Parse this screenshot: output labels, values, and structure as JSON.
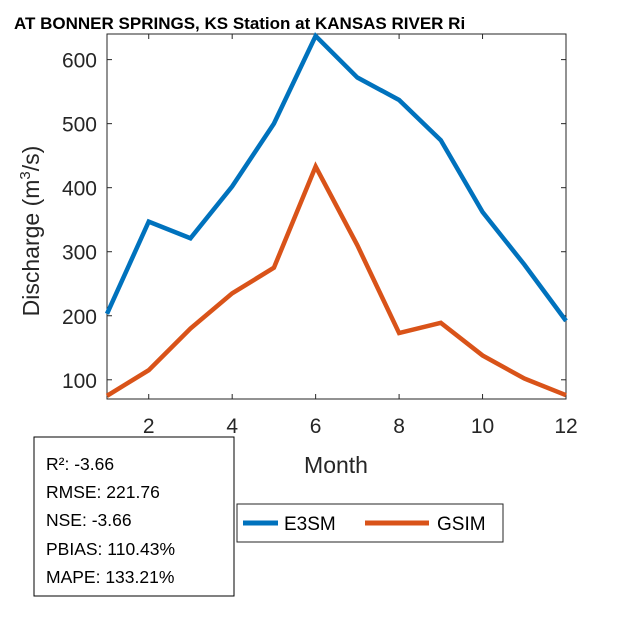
{
  "chart_data": {
    "type": "line",
    "title": "AT BONNER SPRINGS, KS  Station at  KANSAS RIVER  Ri",
    "xlabel": "Month",
    "ylabel_main": "Discharge (m",
    "ylabel_sup": "3",
    "ylabel_end": "/s)",
    "xlim": [
      1,
      12
    ],
    "ylim": [
      70,
      640
    ],
    "xticks": [
      2,
      4,
      6,
      8,
      10,
      12
    ],
    "yticks": [
      100,
      200,
      300,
      400,
      500,
      600
    ],
    "x": [
      1,
      2,
      3,
      4,
      5,
      6,
      7,
      8,
      9,
      10,
      11,
      12
    ],
    "series": [
      {
        "name": "E3SM",
        "color": "#0072BD",
        "values": [
          203,
          347,
          321,
          402,
          500,
          637,
          572,
          537,
          474,
          362,
          280,
          192
        ]
      },
      {
        "name": "GSIM",
        "color": "#D95319",
        "values": [
          75,
          115,
          180,
          235,
          275,
          433,
          310,
          173,
          189,
          138,
          102,
          76
        ]
      }
    ],
    "legend": {
      "position": "below-right",
      "entries": [
        "E3SM",
        "GSIM"
      ]
    },
    "stats": [
      "R²: -3.66",
      "RMSE: 221.76",
      "NSE: -3.66",
      "PBIAS: 110.43%",
      "MAPE: 133.21%"
    ]
  }
}
